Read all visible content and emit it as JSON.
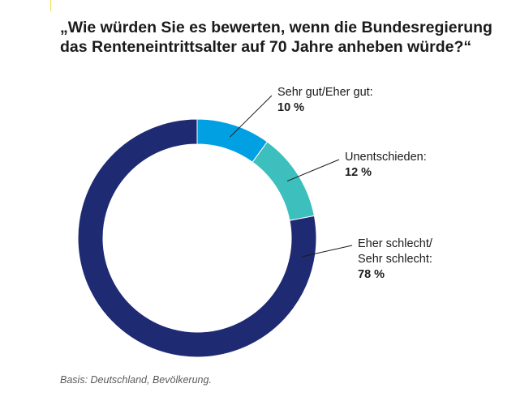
{
  "chart_data": {
    "type": "pie",
    "title": "„Wie würden Sie es bewerten, wenn die Bundesregierung\ndas Renteneintrittsalter auf 70 Jahre anheben würde?“",
    "categories": [
      "Sehr gut/Eher gut:",
      "Unentschieden:",
      "Eher schlecht/\nSehr schlecht:"
    ],
    "values": [
      10,
      12,
      78
    ],
    "value_labels": [
      "10 %",
      "12 %",
      "78 %"
    ],
    "unit": "%",
    "colors": [
      "#00a0e3",
      "#3dbfbd",
      "#1e2a72"
    ],
    "legend": "none",
    "footnote": "Basis: Deutschland, Bevölkerung."
  }
}
